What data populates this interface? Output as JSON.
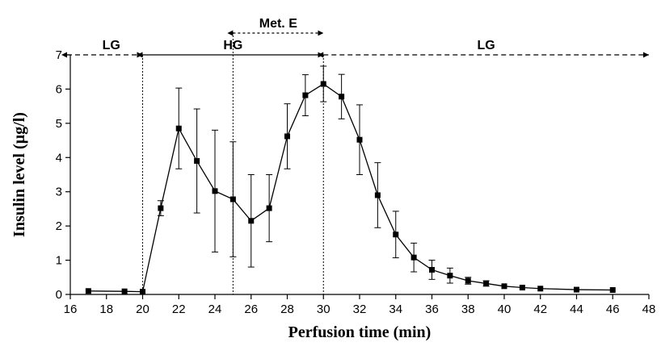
{
  "chart_data": {
    "type": "line",
    "xlabel": "Perfusion time (min)",
    "ylabel": "Insulin level (µg/l)",
    "xlim": [
      16,
      48
    ],
    "ylim": [
      0,
      7
    ],
    "xticks": [
      16,
      18,
      20,
      22,
      24,
      26,
      28,
      30,
      32,
      34,
      36,
      38,
      40,
      42,
      44,
      46,
      48
    ],
    "yticks": [
      0,
      1,
      2,
      3,
      4,
      5,
      6,
      7
    ],
    "grid": false,
    "series": [
      {
        "marker": "square",
        "color": "#000000",
        "x": [
          17,
          19,
          20,
          21,
          22,
          23,
          24,
          25,
          26,
          27,
          28,
          29,
          30,
          31,
          32,
          33,
          34,
          35,
          36,
          37,
          38,
          39,
          40,
          41,
          42,
          44,
          46
        ],
        "y": [
          0.1,
          0.09,
          0.08,
          2.52,
          4.85,
          3.9,
          3.02,
          2.78,
          2.15,
          2.52,
          4.62,
          5.82,
          6.15,
          5.78,
          4.52,
          2.9,
          1.75,
          1.08,
          0.72,
          0.55,
          0.4,
          0.32,
          0.24,
          0.2,
          0.17,
          0.14,
          0.13
        ],
        "error": [
          0,
          0,
          0,
          0.22,
          1.18,
          1.52,
          1.78,
          1.68,
          1.35,
          0.98,
          0.95,
          0.6,
          0.52,
          0.65,
          1.02,
          0.95,
          0.68,
          0.42,
          0.28,
          0.22,
          0.1,
          0.08,
          0,
          0,
          0,
          0,
          0
        ]
      }
    ],
    "phases": [
      {
        "label": "LG",
        "start": 16,
        "end": 20,
        "style": "dashed",
        "level": "upper"
      },
      {
        "label": "HG",
        "start": 20,
        "end": 30,
        "style": "solid",
        "level": "upper"
      },
      {
        "label": "Met. E",
        "start": 25,
        "end": 30,
        "style": "dotted",
        "level": "top"
      },
      {
        "label": "LG",
        "start": 30,
        "end": 48,
        "style": "dashed",
        "level": "upper"
      }
    ],
    "boundaries": [
      20,
      25,
      30
    ]
  }
}
